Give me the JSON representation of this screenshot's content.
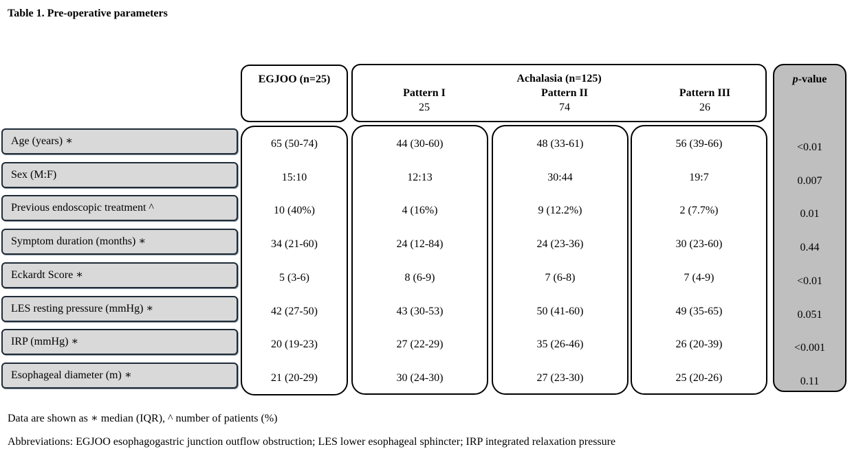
{
  "title": "Table 1. Pre-operative parameters",
  "header": {
    "egjoo": "EGJOO (n=25)",
    "achalasia": "Achalasia (n=125)",
    "patterns": [
      {
        "name": "Pattern I",
        "n": "25"
      },
      {
        "name": "Pattern II",
        "n": "74"
      },
      {
        "name": "Pattern III",
        "n": "26"
      }
    ],
    "pvalue_italic": "p",
    "pvalue_rest": "-value"
  },
  "rows": [
    {
      "label": "Age (years) ∗",
      "egjoo": "65 (50-74)",
      "p1": "44 (30-60)",
      "p2": "48 (33-61)",
      "p3": "56 (39-66)",
      "pvalue": "<0.01"
    },
    {
      "label": "Sex (M:F)",
      "egjoo": "15:10",
      "p1": "12:13",
      "p2": "30:44",
      "p3": "19:7",
      "pvalue": "0.007"
    },
    {
      "label": "Previous endoscopic treatment ^",
      "egjoo": "10 (40%)",
      "p1": "4 (16%)",
      "p2": "9 (12.2%)",
      "p3": "2 (7.7%)",
      "pvalue": "0.01"
    },
    {
      "label": "Symptom duration (months) ∗",
      "egjoo": "34 (21-60)",
      "p1": "24 (12-84)",
      "p2": "24 (23-36)",
      "p3": "30 (23-60)",
      "pvalue": "0.44"
    },
    {
      "label": "Eckardt Score ∗",
      "egjoo": "5 (3-6)",
      "p1": "8 (6-9)",
      "p2": "7 (6-8)",
      "p3": "7 (4-9)",
      "pvalue": "<0.01"
    },
    {
      "label": "LES resting pressure (mmHg) ∗",
      "egjoo": "42 (27-50)",
      "p1": "43 (30-53)",
      "p2": "50 (41-60)",
      "p3": "49 (35-65)",
      "pvalue": "0.051"
    },
    {
      "label": "IRP (mmHg) ∗",
      "egjoo": "20 (19-23)",
      "p1": "27 (22-29)",
      "p2": "35 (26-46)",
      "p3": "26 (20-39)",
      "pvalue": "<0.001"
    },
    {
      "label": "Esophageal diameter (m) ∗",
      "egjoo": "21 (20-29)",
      "p1": "30 (24-30)",
      "p2": "27 (23-30)",
      "p3": "25 (20-26)",
      "pvalue": "0.11"
    }
  ],
  "footnotes": {
    "legend": "Data are shown as ∗ median (IQR), ^ number of patients (%)",
    "abbreviations": "Abbreviations: EGJOO esophagogastric junction outflow obstruction; LES lower esophageal sphincter; IRP integrated relaxation pressure"
  }
}
